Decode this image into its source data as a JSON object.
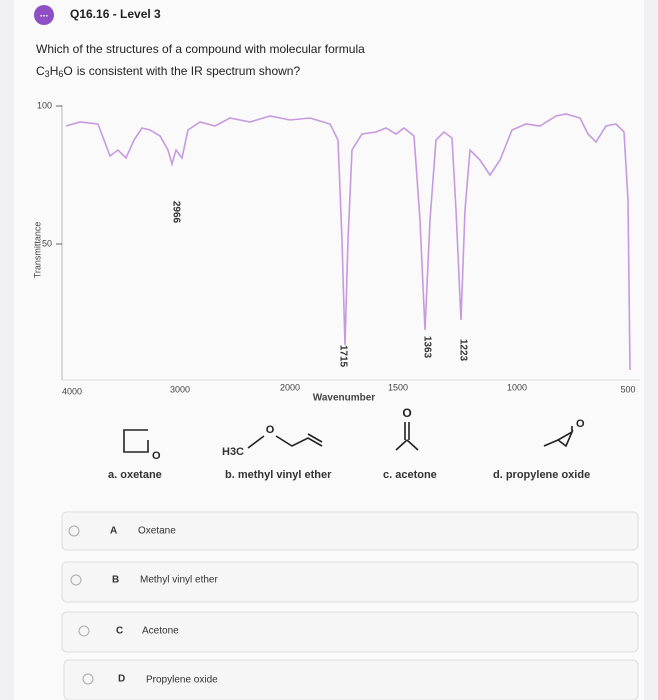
{
  "header": {
    "badge": "...",
    "title": "Q16.16 - Level 3"
  },
  "question": {
    "line1": "Which of the structures of a compound with molecular formula",
    "formula": [
      "C",
      "3",
      "H",
      "6",
      "O"
    ],
    "line2": "is consistent with the IR spectrum shown?"
  },
  "spectrum": {
    "y_label": "Transmittance",
    "x_label": "Wavenumber",
    "y_tick_labels": [
      "100",
      "50"
    ],
    "x_tick_labels": [
      "4000",
      "3000",
      "2000",
      "1500",
      "1000",
      "500"
    ],
    "peak_labels": [
      "2966",
      "1715",
      "1363",
      "1223"
    ]
  },
  "structures": [
    {
      "atoms": [
        "O"
      ],
      "label": "a. oxetane"
    },
    {
      "atoms": [
        "H3C",
        "O"
      ],
      "label": "b. methyl vinyl ether"
    },
    {
      "atoms": [
        "O"
      ],
      "label": "c. acetone"
    },
    {
      "atoms": [
        "O"
      ],
      "label": "d. propylene oxide"
    }
  ],
  "options": [
    {
      "letter": "A",
      "text": "Oxetane"
    },
    {
      "letter": "B",
      "text": "Methyl vinyl ether"
    },
    {
      "letter": "C",
      "text": "Acetone"
    },
    {
      "letter": "D",
      "text": "Propylene oxide"
    }
  ]
}
